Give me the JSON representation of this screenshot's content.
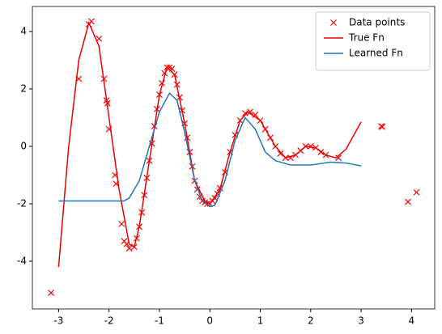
{
  "chart_data": {
    "type": "line",
    "xlim": [
      -3.52,
      4.46
    ],
    "ylim": [
      -5.66,
      4.87
    ],
    "xticks": [
      -3,
      -2,
      -1,
      0,
      1,
      2,
      3,
      4
    ],
    "yticks": [
      -4,
      -2,
      0,
      2,
      4
    ],
    "grid": false,
    "legend": "upper right",
    "series": [
      {
        "name": "Data points",
        "color": "#ff0000",
        "marker": "x",
        "x": [
          -3.15,
          -2.6,
          -2.4,
          -2.35,
          -2.2,
          -2.1,
          -2.05,
          -2.03,
          -2.0,
          -1.88,
          -1.86,
          -1.75,
          -1.7,
          -1.65,
          -1.6,
          -1.5,
          -1.45,
          -1.4,
          -1.35,
          -1.3,
          -1.25,
          -1.2,
          -1.15,
          -1.1,
          -1.05,
          -1.0,
          -0.95,
          -0.9,
          -0.85,
          -0.8,
          -0.75,
          -0.7,
          -0.65,
          -0.6,
          -0.55,
          -0.5,
          -0.45,
          -0.4,
          -0.35,
          -0.3,
          -0.25,
          -0.2,
          -0.15,
          -0.1,
          -0.05,
          0,
          0.05,
          0.1,
          0.15,
          0.2,
          0.3,
          0.4,
          0.5,
          0.6,
          0.7,
          0.8,
          0.9,
          1.0,
          1.1,
          1.2,
          1.3,
          1.4,
          1.5,
          1.6,
          1.7,
          1.8,
          1.9,
          2.0,
          2.1,
          2.2,
          2.3,
          2.55,
          3.4,
          3.42,
          3.93,
          4.1
        ],
        "values": [
          -5.1,
          2.35,
          4.25,
          4.35,
          3.75,
          2.35,
          1.6,
          1.5,
          0.6,
          -1.0,
          -1.3,
          -2.7,
          -3.3,
          -3.4,
          -3.55,
          -3.5,
          -3.2,
          -2.8,
          -2.3,
          -1.7,
          -1.1,
          -0.5,
          0.1,
          0.7,
          1.3,
          1.8,
          2.2,
          2.55,
          2.75,
          2.75,
          2.7,
          2.5,
          2.15,
          1.7,
          1.25,
          0.8,
          0.3,
          -0.2,
          -0.7,
          -1.2,
          -1.5,
          -1.75,
          -1.9,
          -1.95,
          -2.0,
          -2.0,
          -1.9,
          -1.8,
          -1.65,
          -1.45,
          -0.9,
          -0.2,
          0.4,
          0.9,
          1.15,
          1.2,
          1.1,
          0.9,
          0.6,
          0.3,
          0.0,
          -0.25,
          -0.4,
          -0.4,
          -0.3,
          -0.15,
          0.0,
          0.0,
          -0.05,
          -0.2,
          -0.3,
          -0.4,
          0.7,
          0.68,
          -1.93,
          -1.6
        ]
      },
      {
        "name": "True Fn",
        "color": "#ee0000",
        "marker": "line",
        "x": [
          -3.0,
          -2.8,
          -2.6,
          -2.4,
          -2.2,
          -2.0,
          -1.8,
          -1.6,
          -1.5,
          -1.4,
          -1.2,
          -1.0,
          -0.85,
          -0.7,
          -0.5,
          -0.3,
          -0.1,
          0,
          0.2,
          0.4,
          0.6,
          0.75,
          1.0,
          1.3,
          1.5,
          1.7,
          1.9,
          2.1,
          2.3,
          2.5,
          2.7,
          3.0
        ],
        "values": [
          -4.2,
          0,
          3,
          4.3,
          3.5,
          1.0,
          -1.5,
          -3.4,
          -3.5,
          -2.8,
          -0.5,
          1.8,
          2.75,
          2.5,
          0.8,
          -1.2,
          -1.9,
          -2.0,
          -1.5,
          -0.2,
          0.9,
          1.2,
          0.9,
          0,
          -0.4,
          -0.3,
          0,
          -0.05,
          -0.3,
          -0.4,
          -0.1,
          0.85
        ]
      },
      {
        "name": "Learned Fn",
        "color": "#1f77b4",
        "marker": "line",
        "x": [
          -3.0,
          -1.7,
          -1.6,
          -1.4,
          -1.2,
          -1.0,
          -0.8,
          -0.65,
          -0.5,
          -0.3,
          -0.15,
          0,
          0.1,
          0.3,
          0.5,
          0.7,
          0.9,
          1.1,
          1.3,
          1.6,
          2.0,
          2.4,
          2.7,
          3.0
        ],
        "values": [
          -1.9,
          -1.9,
          -1.8,
          -1.2,
          0,
          1.2,
          1.85,
          1.6,
          0.5,
          -1.2,
          -1.9,
          -2.1,
          -2.05,
          -1.2,
          0.2,
          1.0,
          0.6,
          -0.2,
          -0.5,
          -0.65,
          -0.65,
          -0.55,
          -0.58,
          -0.68
        ]
      }
    ]
  }
}
